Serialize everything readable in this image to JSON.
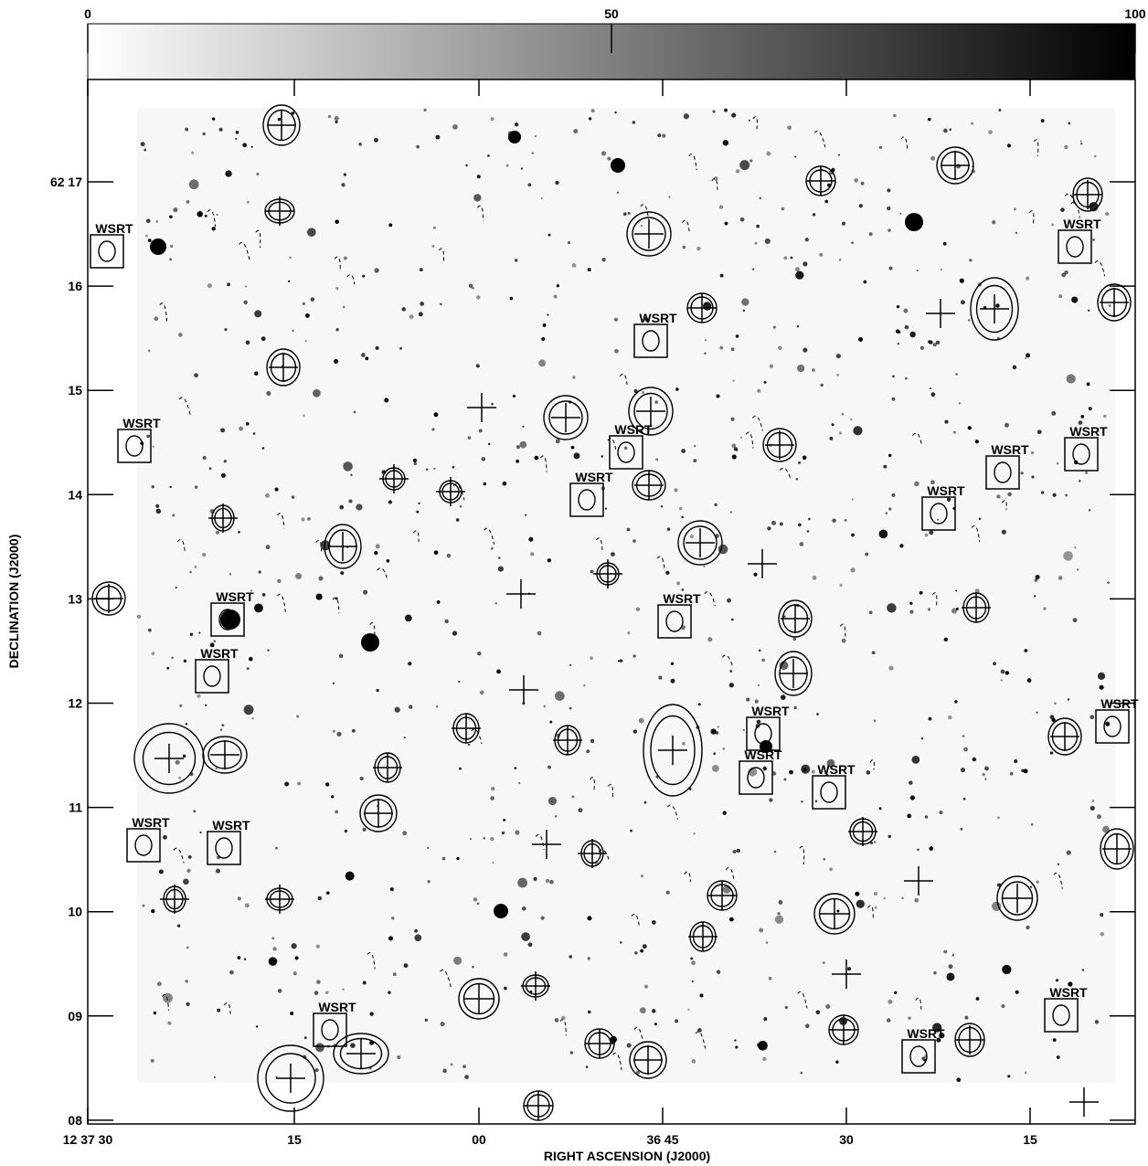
{
  "colorbar": {
    "range": [
      0,
      100
    ],
    "ticks": [
      0,
      50,
      100
    ]
  },
  "x_axis": {
    "title": "RIGHT ASCENSION (J2000)",
    "ticks": [
      "12 37 30",
      "15",
      "00",
      "36 45",
      "30",
      "15"
    ]
  },
  "y_axis": {
    "title": "DECLINATION (J2000)",
    "ticks": [
      "62 17",
      "16",
      "15",
      "14",
      "13",
      "12",
      "11",
      "10",
      "09",
      "08"
    ]
  },
  "wsrt_labels": [
    "WSRT",
    "WSRT",
    "WSRT",
    "WSRT",
    "WSRT",
    "WSRT",
    "WSRT",
    "WSRT",
    "WSRT",
    "WSRT",
    "WSRT",
    "WSRT",
    "WSRT",
    "WSRT",
    "WSRT",
    "WSRT",
    "WSRT",
    "WSRT",
    "WSRT",
    "WSRT",
    "WSRT"
  ]
}
